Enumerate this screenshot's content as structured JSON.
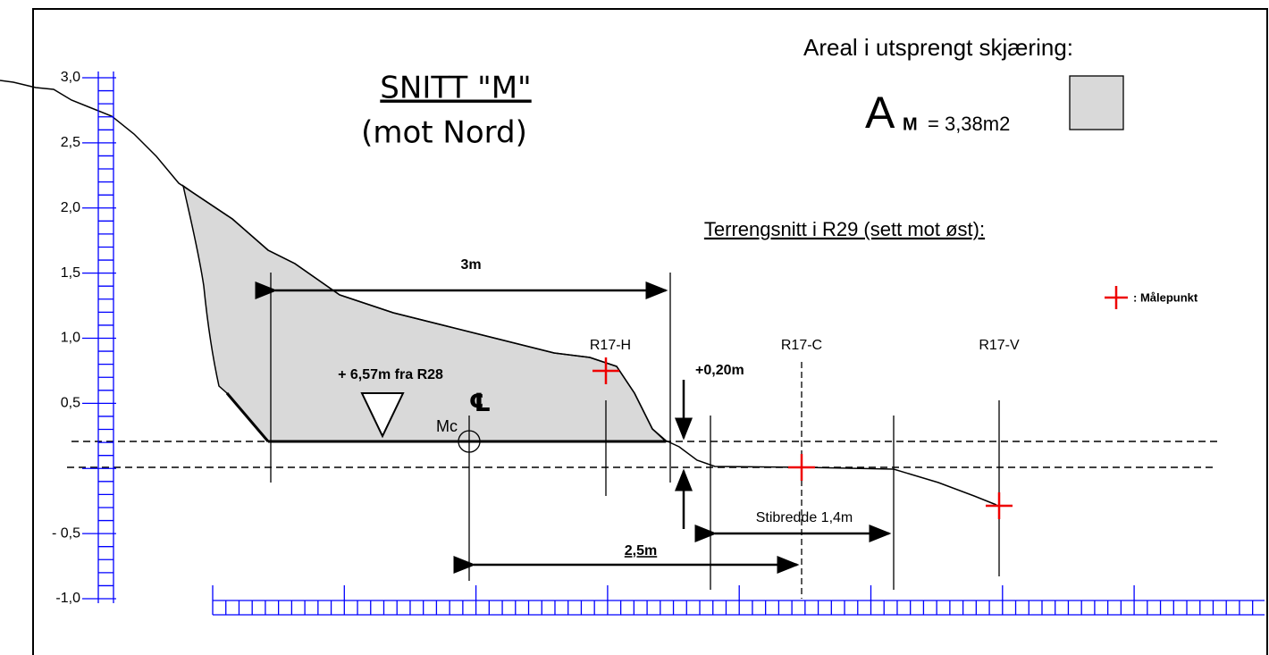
{
  "title": "SNITT \"M\"",
  "subtitle": "(mot Nord)",
  "area": {
    "label": "Areal i utsprengt skjæring:",
    "symbol": "A",
    "subscript": "M",
    "value": "= 3,38m2"
  },
  "section_title": "Terrengsnitt i R29 (sett mot øst):",
  "legend": ": Målepunkt",
  "dimensions": {
    "width": "3m",
    "height": "+0,20m",
    "offset": "+ 6,57m fra R28",
    "distance": "2,5m",
    "path_width": "Stibredde 1,4m"
  },
  "center": {
    "symbol": "℄",
    "label": "Mc"
  },
  "points": [
    "R17-H",
    "R17-C",
    "R17-V"
  ],
  "y_axis_labels": [
    "3,0",
    "2,5",
    "2,0",
    "1,5",
    "1,0",
    "0,5",
    "- 0,5",
    "-1,0"
  ]
}
